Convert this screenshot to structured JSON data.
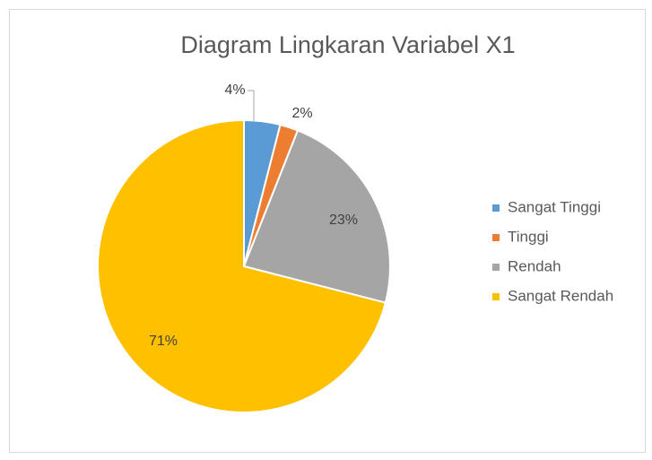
{
  "chart_data": {
    "type": "pie",
    "title": "Diagram Lingkaran Variabel X1",
    "categories": [
      "Sangat Tinggi",
      "Tinggi",
      "Rendah",
      "Sangat Rendah"
    ],
    "values": [
      4,
      2,
      23,
      71
    ],
    "value_labels": [
      "4%",
      "2%",
      "23%",
      "71%"
    ],
    "colors": [
      "#5b9bd5",
      "#ed7d31",
      "#a5a5a5",
      "#ffc000"
    ],
    "legend": "right"
  }
}
